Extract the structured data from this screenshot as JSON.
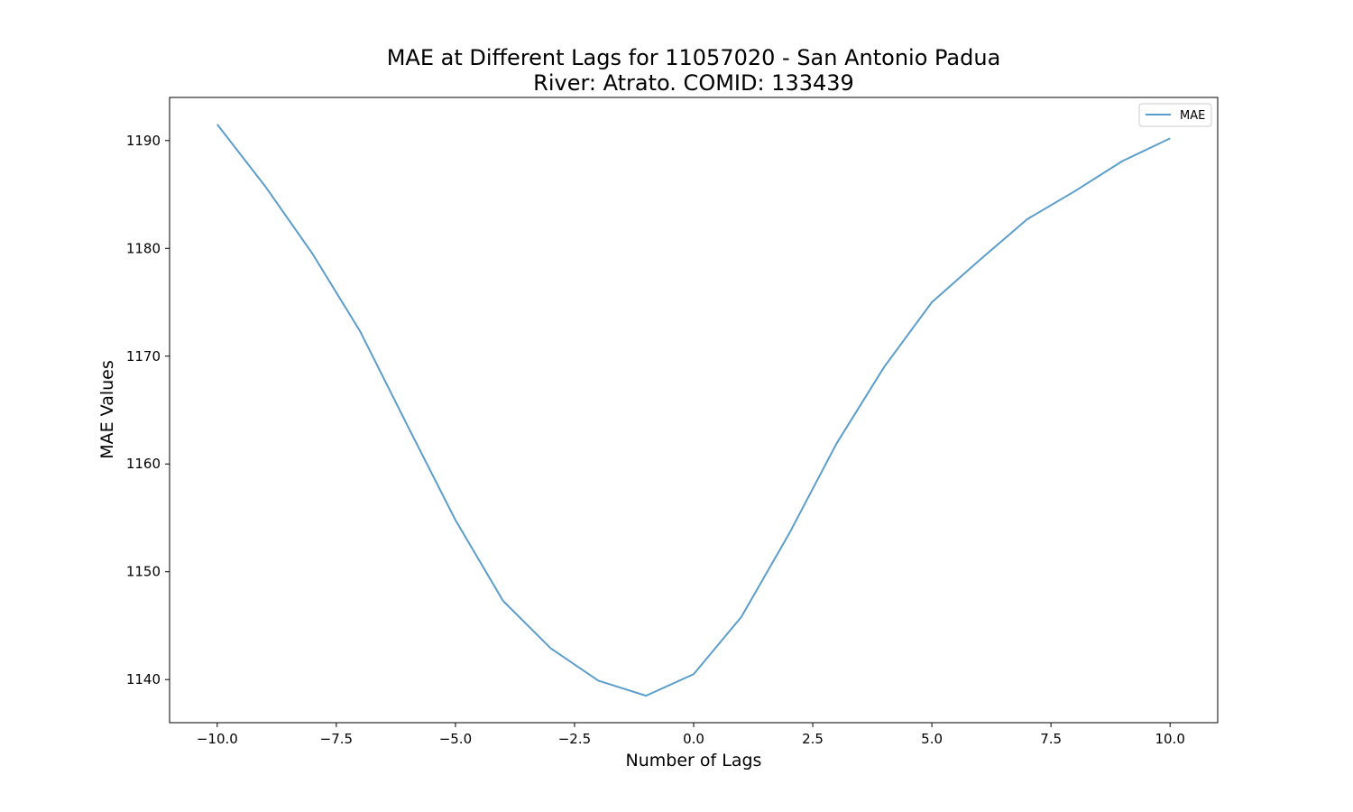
{
  "chart_data": {
    "type": "line",
    "title": "MAE at Different Lags for 11057020 - San Antonio Padua",
    "subtitle": "River: Atrato. COMID: 133439",
    "xlabel": "Number of Lags",
    "ylabel": "MAE Values",
    "xlim": [
      -11,
      11
    ],
    "ylim": [
      1136,
      1194
    ],
    "xticks": [
      -10.0,
      -7.5,
      -5.0,
      -2.5,
      0.0,
      2.5,
      5.0,
      7.5,
      10.0
    ],
    "xtick_labels": [
      "−10.0",
      "−7.5",
      "−5.0",
      "−2.5",
      "0.0",
      "2.5",
      "5.0",
      "7.5",
      "10.0"
    ],
    "yticks": [
      1140,
      1150,
      1160,
      1170,
      1180,
      1190
    ],
    "ytick_labels": [
      "1140",
      "1150",
      "1160",
      "1170",
      "1180",
      "1190"
    ],
    "grid": false,
    "legend_position": "top-right",
    "series": [
      {
        "name": "MAE",
        "color": "#5b9ecc",
        "x": [
          -10,
          -9,
          -8,
          -7,
          -6,
          -5,
          -4,
          -3,
          -2,
          -1,
          0,
          1,
          2,
          3,
          4,
          5,
          6,
          7,
          8,
          9,
          10
        ],
        "y": [
          1191.5,
          1185.8,
          1179.5,
          1172.3,
          1163.5,
          1154.8,
          1147.3,
          1142.9,
          1139.9,
          1138.5,
          1140.5,
          1145.8,
          1153.5,
          1161.9,
          1169.0,
          1175.0,
          1178.9,
          1182.7,
          1185.3,
          1188.1,
          1190.2
        ]
      }
    ]
  }
}
